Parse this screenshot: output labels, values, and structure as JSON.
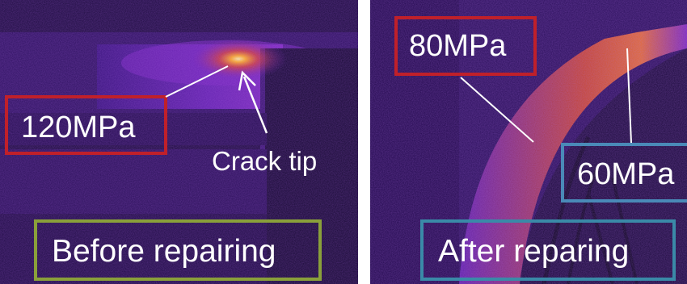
{
  "left_panel": {
    "stress_label": "120MPa",
    "crack_tip_label": "Crack tip",
    "caption": "Before repairing"
  },
  "right_panel": {
    "stress_label_high": "80MPa",
    "stress_label_low": "60MPa",
    "caption": "After reparing"
  },
  "colors": {
    "background_dark": "#1b0b3a",
    "thermal_purple": "#6a1fbf",
    "thermal_orange": "#ff7a2e",
    "box_red": "#c0202a",
    "box_olive": "#8aa03a",
    "box_blue": "#4a8ab8",
    "box_teal": "#3a8aa8",
    "text": "#ffffff"
  }
}
